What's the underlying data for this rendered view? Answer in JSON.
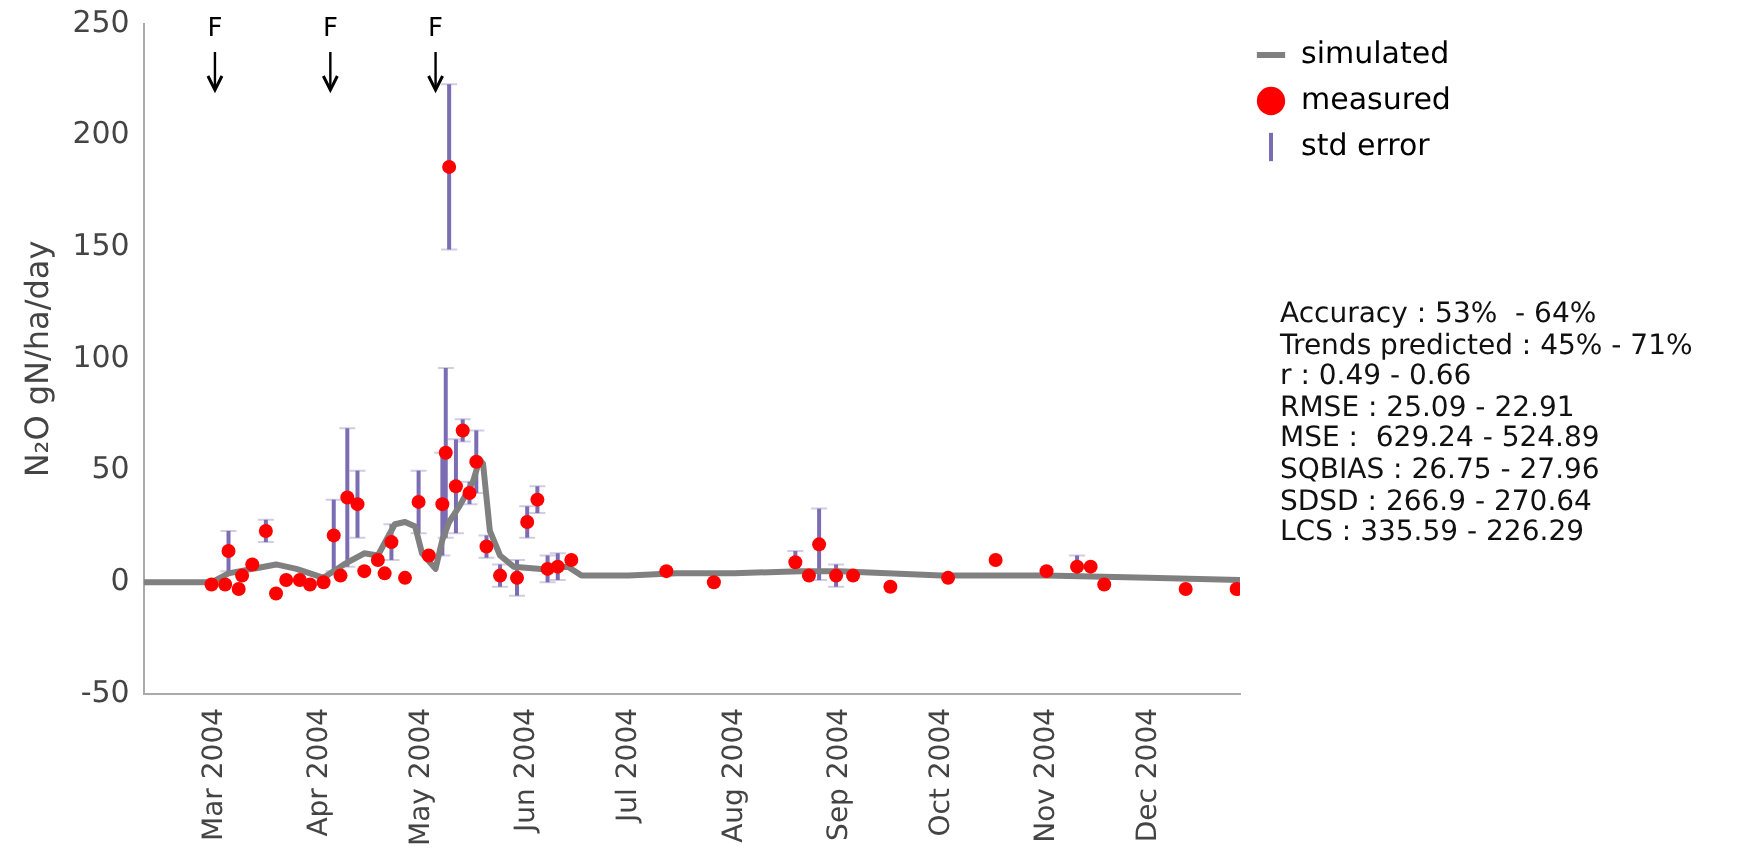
{
  "chart_data": {
    "type": "scatter",
    "ylabel": "N₂O gN/ha/day",
    "xlim": [
      "2004-02-09",
      "2004-12-28"
    ],
    "xticks": [
      {
        "value": "2004-03-01",
        "label": "Mar 2004"
      },
      {
        "value": "2004-04-01",
        "label": "Apr 2004"
      },
      {
        "value": "2004-05-01",
        "label": "May 2004"
      },
      {
        "value": "2004-06-01",
        "label": "Jun 2004"
      },
      {
        "value": "2004-07-01",
        "label": "Jul 2004"
      },
      {
        "value": "2004-08-01",
        "label": "Aug 2004"
      },
      {
        "value": "2004-09-01",
        "label": "Sep 2004"
      },
      {
        "value": "2004-10-01",
        "label": "Oct 2004"
      },
      {
        "value": "2004-11-01",
        "label": "Nov 2004"
      },
      {
        "value": "2004-12-01",
        "label": "Dec 2004"
      }
    ],
    "ylim": [
      -50,
      250
    ],
    "yticks": [
      -50,
      0,
      50,
      100,
      150,
      200,
      250
    ],
    "grid": false,
    "legend": "top right",
    "ref_lines": [
      {
        "axis": "x",
        "value": "2004-03-01",
        "label": "F"
      },
      {
        "axis": "x",
        "value": "2004-04-04",
        "label": "F"
      },
      {
        "axis": "x",
        "value": "2004-05-05",
        "label": "F"
      }
    ],
    "series": [
      {
        "name": "simulated",
        "type": "line",
        "color": "#808080",
        "marker": "none",
        "line_style": "solid",
        "x": [
          "2004-02-09",
          "2004-02-29",
          "2004-03-05",
          "2004-03-12",
          "2004-03-19",
          "2004-03-25",
          "2004-04-02",
          "2004-04-08",
          "2004-04-14",
          "2004-04-18",
          "2004-04-23",
          "2004-04-26",
          "2004-04-29",
          "2004-05-01",
          "2004-05-05",
          "2004-05-07",
          "2004-05-09",
          "2004-05-12",
          "2004-05-16",
          "2004-05-18",
          "2004-05-19",
          "2004-05-21",
          "2004-05-24",
          "2004-05-28",
          "2004-06-05",
          "2004-06-13",
          "2004-06-17",
          "2004-07-01",
          "2004-07-15",
          "2004-08-01",
          "2004-08-20",
          "2004-09-01",
          "2004-10-01",
          "2004-11-01",
          "2004-12-01",
          "2004-12-28"
        ],
        "values": [
          0,
          0,
          4,
          6,
          8,
          6,
          2,
          8,
          13,
          12,
          26,
          27,
          25,
          13,
          6,
          19,
          27,
          34,
          45,
          55,
          53,
          23,
          12,
          7,
          6,
          7,
          3,
          3,
          4,
          4,
          5,
          5,
          3,
          3,
          2,
          1
        ]
      },
      {
        "name": "measured",
        "color": "#ff0000",
        "marker": "circle",
        "x": [
          "2004-02-29",
          "2004-03-04",
          "2004-03-05",
          "2004-03-08",
          "2004-03-09",
          "2004-03-12",
          "2004-03-16",
          "2004-03-19",
          "2004-03-22",
          "2004-03-26",
          "2004-03-29",
          "2004-04-02",
          "2004-04-05",
          "2004-04-07",
          "2004-04-09",
          "2004-04-12",
          "2004-04-14",
          "2004-04-18",
          "2004-04-20",
          "2004-04-22",
          "2004-04-26",
          "2004-04-30",
          "2004-05-03",
          "2004-05-07",
          "2004-05-08",
          "2004-05-09",
          "2004-05-11",
          "2004-05-13",
          "2004-05-15",
          "2004-05-17",
          "2004-05-20",
          "2004-05-24",
          "2004-05-29",
          "2004-06-01",
          "2004-06-04",
          "2004-06-07",
          "2004-06-10",
          "2004-06-14",
          "2004-07-12",
          "2004-07-26",
          "2004-08-19",
          "2004-08-23",
          "2004-08-26",
          "2004-08-31",
          "2004-09-05",
          "2004-09-16",
          "2004-10-03",
          "2004-10-17",
          "2004-11-01",
          "2004-11-10",
          "2004-11-14",
          "2004-11-18",
          "2004-12-12",
          "2004-12-27"
        ],
        "values": [
          -1,
          -1,
          14,
          -3,
          3,
          8,
          23,
          -5,
          1,
          1,
          -1,
          0,
          21,
          3,
          38,
          35,
          5,
          10,
          4,
          18,
          2,
          36,
          12,
          35,
          58,
          186,
          43,
          68,
          40,
          54,
          16,
          3,
          2,
          27,
          37,
          6,
          7,
          10,
          5,
          0,
          9,
          3,
          17,
          3,
          3,
          -2,
          2,
          10,
          5,
          7,
          7,
          -1,
          -3,
          -3
        ],
        "errors": [
          null,
          null,
          9,
          null,
          null,
          null,
          5,
          null,
          null,
          null,
          null,
          null,
          16,
          null,
          31,
          15,
          null,
          null,
          null,
          8,
          null,
          14,
          null,
          23,
          38,
          37,
          21,
          5,
          5,
          14,
          5,
          5,
          8,
          7,
          6,
          6,
          6,
          null,
          null,
          null,
          5,
          null,
          16,
          5,
          null,
          null,
          null,
          null,
          null,
          5,
          null,
          null,
          null,
          null
        ]
      }
    ],
    "annotations": [
      "std error",
      "Accuracy : 53%  - 64%",
      "Trends predicted : 45% - 71%",
      "r : 0.49 - 0.66",
      "RMSE : 25.09 - 22.91",
      "MSE :  629.24 - 524.89",
      "SQBIAS : 26.75 - 27.96",
      "SDSD : 266.9 - 270.64",
      "LCS : 335.59 - 226.29"
    ]
  }
}
